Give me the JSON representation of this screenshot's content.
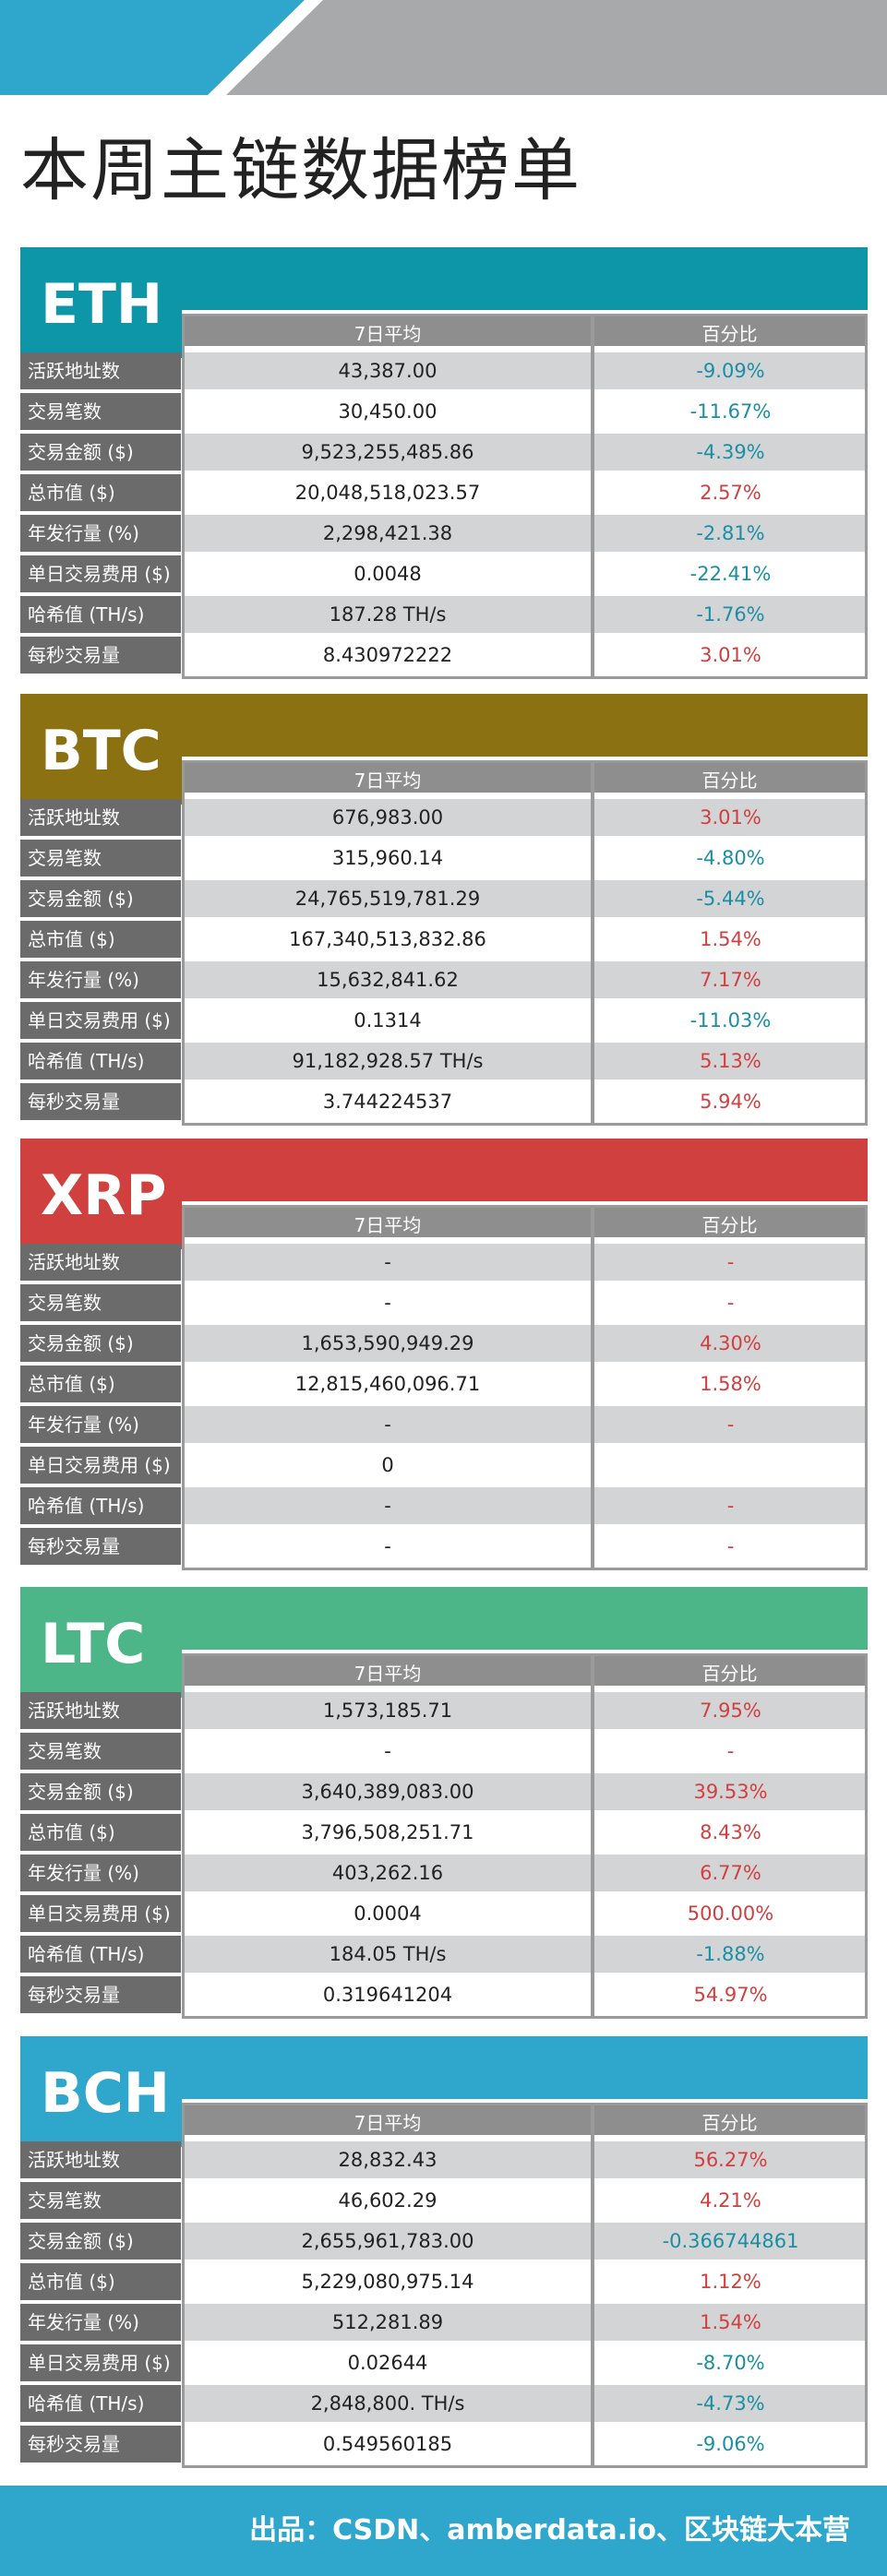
{
  "title": "本周主链数据榜单",
  "header": {
    "avg": "7日平均",
    "pct": "百分比"
  },
  "sections": [
    {
      "name": "ETH",
      "color": "#0d95a8",
      "rows": [
        {
          "label": "活跃地址数",
          "avg": "43,387.00",
          "pct": "-9.09%",
          "trend": "neg"
        },
        {
          "label": "交易笔数",
          "avg": "30,450.00",
          "pct": "-11.67%",
          "trend": "neg"
        },
        {
          "label": "交易金额 ($)",
          "avg": "9,523,255,485.86",
          "pct": "-4.39%",
          "trend": "neg"
        },
        {
          "label": "总市值 ($)",
          "avg": "20,048,518,023.57",
          "pct": "2.57%",
          "trend": "pos"
        },
        {
          "label": "年发行量 (%)",
          "avg": "2,298,421.38",
          "pct": "-2.81%",
          "trend": "neg"
        },
        {
          "label": "单日交易费用 ($)",
          "avg": "0.0048",
          "pct": "-22.41%",
          "trend": "neg"
        },
        {
          "label": "哈希值 (TH/s)",
          "avg": "187.28 TH/s",
          "pct": "-1.76%",
          "trend": "neg"
        },
        {
          "label": "每秒交易量",
          "avg": "8.430972222",
          "pct": "3.01%",
          "trend": "pos"
        }
      ]
    },
    {
      "name": "BTC",
      "color": "#8c7113",
      "rows": [
        {
          "label": "活跃地址数",
          "avg": "676,983.00",
          "pct": "3.01%",
          "trend": "pos"
        },
        {
          "label": "交易笔数",
          "avg": "315,960.14",
          "pct": "-4.80%",
          "trend": "neg"
        },
        {
          "label": "交易金额 ($)",
          "avg": "24,765,519,781.29",
          "pct": "-5.44%",
          "trend": "neg"
        },
        {
          "label": "总市值 ($)",
          "avg": "167,340,513,832.86",
          "pct": "1.54%",
          "trend": "pos"
        },
        {
          "label": "年发行量 (%)",
          "avg": "15,632,841.62",
          "pct": "7.17%",
          "trend": "pos"
        },
        {
          "label": "单日交易费用 ($)",
          "avg": "0.1314",
          "pct": "-11.03%",
          "trend": "neg"
        },
        {
          "label": "哈希值 (TH/s)",
          "avg": "91,182,928.57 TH/s",
          "pct": "5.13%",
          "trend": "pos"
        },
        {
          "label": "每秒交易量",
          "avg": "3.744224537",
          "pct": "5.94%",
          "trend": "pos"
        }
      ]
    },
    {
      "name": "XRP",
      "color": "#cf403e",
      "rows": [
        {
          "label": "活跃地址数",
          "avg": "-",
          "pct": "-",
          "trend": "pos"
        },
        {
          "label": "交易笔数",
          "avg": "-",
          "pct": "-",
          "trend": "pos"
        },
        {
          "label": "交易金额 ($)",
          "avg": "1,653,590,949.29",
          "pct": "4.30%",
          "trend": "pos"
        },
        {
          "label": "总市值 ($)",
          "avg": "12,815,460,096.71",
          "pct": "1.58%",
          "trend": "pos"
        },
        {
          "label": "年发行量 (%)",
          "avg": "-",
          "pct": "-",
          "trend": "pos"
        },
        {
          "label": "单日交易费用 ($)",
          "avg": "0",
          "pct": "",
          "trend": "pos"
        },
        {
          "label": "哈希值 (TH/s)",
          "avg": "-",
          "pct": "-",
          "trend": "pos"
        },
        {
          "label": "每秒交易量",
          "avg": "-",
          "pct": "-",
          "trend": "pos"
        }
      ]
    },
    {
      "name": "LTC",
      "color": "#4db688",
      "rows": [
        {
          "label": "活跃地址数",
          "avg": "1,573,185.71",
          "pct": "7.95%",
          "trend": "pos"
        },
        {
          "label": "交易笔数",
          "avg": "-",
          "pct": "-",
          "trend": "pos"
        },
        {
          "label": "交易金额 ($)",
          "avg": "3,640,389,083.00",
          "pct": "39.53%",
          "trend": "pos"
        },
        {
          "label": "总市值 ($)",
          "avg": "3,796,508,251.71",
          "pct": "8.43%",
          "trend": "pos"
        },
        {
          "label": "年发行量 (%)",
          "avg": "403,262.16",
          "pct": "6.77%",
          "trend": "pos"
        },
        {
          "label": "单日交易费用 ($)",
          "avg": "0.0004",
          "pct": "500.00%",
          "trend": "pos"
        },
        {
          "label": "哈希值 (TH/s)",
          "avg": "184.05 TH/s",
          "pct": "-1.88%",
          "trend": "neg"
        },
        {
          "label": "每秒交易量",
          "avg": "0.319641204",
          "pct": "54.97%",
          "trend": "pos"
        }
      ]
    },
    {
      "name": "BCH",
      "color": "#2fa7cc",
      "rows": [
        {
          "label": "活跃地址数",
          "avg": "28,832.43",
          "pct": "56.27%",
          "trend": "pos"
        },
        {
          "label": "交易笔数",
          "avg": "46,602.29",
          "pct": "4.21%",
          "trend": "pos"
        },
        {
          "label": "交易金额 ($)",
          "avg": "2,655,961,783.00",
          "pct": "-0.366744861",
          "trend": "neg"
        },
        {
          "label": "总市值 ($)",
          "avg": "5,229,080,975.14",
          "pct": "1.12%",
          "trend": "pos"
        },
        {
          "label": "年发行量 (%)",
          "avg": "512,281.89",
          "pct": "1.54%",
          "trend": "pos"
        },
        {
          "label": "单日交易费用 ($)",
          "avg": "0.02644",
          "pct": "-8.70%",
          "trend": "neg"
        },
        {
          "label": "哈希值 (TH/s)",
          "avg": "2,848,800. TH/s",
          "pct": "-4.73%",
          "trend": "neg"
        },
        {
          "label": "每秒交易量",
          "avg": "0.549560185",
          "pct": "-9.06%",
          "trend": "neg"
        }
      ]
    }
  ],
  "footer": {
    "text": "出品：CSDN、amberdata.io、区块链大本营"
  }
}
